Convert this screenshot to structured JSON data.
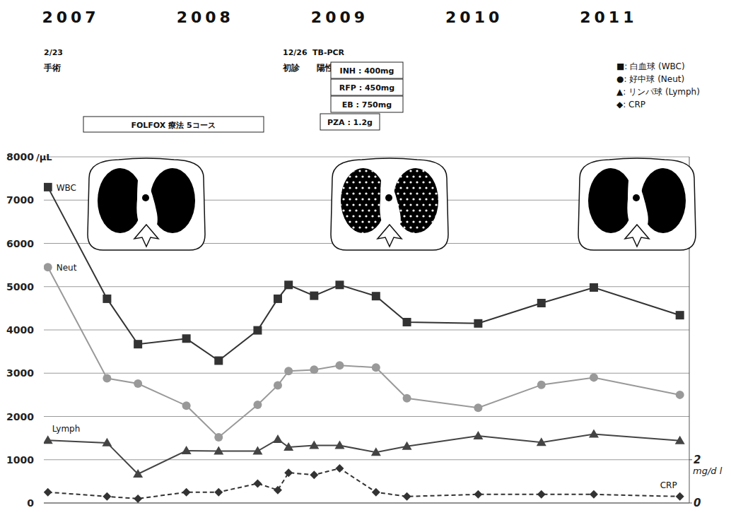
{
  "chart_data": {
    "type": "line",
    "x": [
      2006.83,
      2007.27,
      2007.5,
      2007.86,
      2008.1,
      2008.39,
      2008.54,
      2008.62,
      2008.81,
      2009.0,
      2009.27,
      2009.5,
      2010.03,
      2010.5,
      2010.89,
      2011.53
    ],
    "xlim": [
      2006.8,
      2011.6
    ],
    "xticks": [
      2007,
      2008,
      2009,
      2010,
      2011
    ],
    "ylim": [
      0,
      8000
    ],
    "yticks": [
      0,
      1000,
      2000,
      3000,
      4000,
      5000,
      6000,
      7000,
      8000
    ],
    "y_label": "/μL",
    "y2lim": [
      0,
      16
    ],
    "y2ticks": [
      0,
      2
    ],
    "y2_label": "mg/d l",
    "grid": true,
    "legend": "top-right",
    "series": [
      {
        "name": "WBC",
        "legend_label": "■: 白血球 (WBC)",
        "color": "#333333",
        "marker": "square",
        "line_style": "solid",
        "values": [
          7300,
          4720,
          3670,
          3800,
          3290,
          3990,
          4720,
          5040,
          4790,
          5040,
          4780,
          4180,
          4150,
          4620,
          4980,
          4340
        ]
      },
      {
        "name": "Neut",
        "legend_label": "●: 好中球 (Neut)",
        "color": "#999999",
        "marker": "circle",
        "line_style": "solid",
        "values": [
          5450,
          2880,
          2760,
          2250,
          1520,
          2270,
          2720,
          3050,
          3080,
          3180,
          3130,
          2420,
          2200,
          2730,
          2900,
          2500
        ]
      },
      {
        "name": "Lymph",
        "legend_label": "▲: リンパ球 (Lymph)",
        "color": "#444444",
        "marker": "triangle",
        "line_style": "solid",
        "values": [
          1450,
          1390,
          670,
          1210,
          1200,
          1200,
          1470,
          1290,
          1330,
          1330,
          1170,
          1310,
          1550,
          1400,
          1590,
          1440
        ]
      },
      {
        "name": "CRP",
        "legend_label": "◆: CRP",
        "color": "#333333",
        "marker": "diamond",
        "line_style": "dashed",
        "axis": "y2",
        "values": [
          0.5,
          0.3,
          0.2,
          0.5,
          0.5,
          0.9,
          0.6,
          1.4,
          1.3,
          1.6,
          0.5,
          0.3,
          0.4,
          0.4,
          0.4,
          0.3
        ]
      }
    ],
    "annotations": [
      {
        "date": "2/23",
        "text": "手術"
      },
      {
        "date": "12/26",
        "text": "初診"
      },
      {
        "date": "TB-PCR",
        "text": "陽性"
      }
    ],
    "chemotherapy": "FOLFOX 療法 5コース",
    "drugs": [
      "INH : 400mg",
      "RFP : 450mg",
      "EB : 750mg",
      "PZA : 1.2g"
    ]
  }
}
